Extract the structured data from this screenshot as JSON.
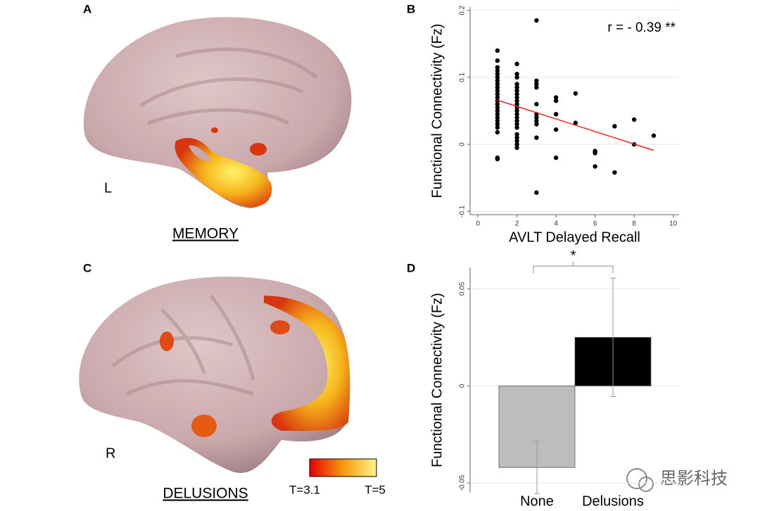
{
  "figure": {
    "panel_a": "A",
    "panel_b": "B",
    "panel_c": "C",
    "panel_d": "D",
    "hemisphere_a": "L",
    "caption_a": "MEMORY",
    "hemisphere_c": "R",
    "caption_c": "DELUSIONS",
    "colorbar_min": "T=3.1",
    "colorbar_max": "T=5",
    "watermark": "思影科技"
  },
  "chart_data": [
    {
      "type": "scatter",
      "x_label": "AVLT Delayed Recall",
      "y_label": "Functional Connectivity (Fz)",
      "annotation": "r = - 0.39 **",
      "color": "#000000",
      "x": [
        1,
        1,
        1,
        1,
        1,
        1,
        1,
        1,
        1,
        1,
        1,
        1,
        1,
        1,
        1,
        1,
        1,
        1,
        1,
        1,
        1,
        1,
        1,
        1,
        2,
        2,
        2,
        2,
        2,
        2,
        2,
        2,
        2,
        2,
        2,
        2,
        2,
        2,
        2,
        2,
        2,
        2,
        2,
        2,
        2,
        2,
        3,
        3,
        3,
        3,
        3,
        3,
        3,
        3,
        3,
        3,
        3,
        4,
        4,
        4,
        4,
        4,
        5,
        5,
        6,
        6,
        6,
        7,
        7,
        8,
        8,
        9
      ],
      "y": [
        0.14,
        0.125,
        0.115,
        0.11,
        0.105,
        0.1,
        0.095,
        0.09,
        0.085,
        0.08,
        0.075,
        0.07,
        0.065,
        0.06,
        0.055,
        0.05,
        0.045,
        0.04,
        0.035,
        0.03,
        0.025,
        0.018,
        -0.02,
        -0.022,
        0.12,
        0.105,
        0.1,
        0.09,
        0.085,
        0.08,
        0.075,
        0.07,
        0.065,
        0.06,
        0.055,
        0.05,
        0.045,
        0.04,
        0.035,
        0.03,
        0.025,
        0.015,
        0.01,
        0.005,
        0,
        -0.005,
        0.185,
        0.095,
        0.09,
        0.085,
        0.06,
        0.045,
        0.04,
        0.035,
        0.03,
        0.01,
        -0.072,
        0.07,
        0.065,
        0.045,
        0.022,
        -0.02,
        0.076,
        0.032,
        -0.01,
        -0.013,
        -0.033,
        0.027,
        -0.042,
        0.037,
        0,
        0.013
      ],
      "trendline": {
        "x": [
          1,
          9
        ],
        "y": [
          0.066,
          -0.009
        ],
        "color": "#e8231f"
      },
      "xlim": [
        -0.4,
        10.3
      ],
      "ylim": [
        -0.105,
        0.205
      ],
      "xticks": [
        0,
        2,
        4,
        6,
        8,
        10
      ],
      "yticks": [
        -0.1,
        0,
        0.1,
        0.2
      ],
      "grid": true
    },
    {
      "type": "bar",
      "y_label": "Functional Connectivity (Fz)",
      "categories": [
        "None",
        "Delusions"
      ],
      "values": [
        -0.042,
        0.025
      ],
      "errors": [
        0.0135,
        0.0305
      ],
      "colors": [
        "#bdbdbd",
        "#000000"
      ],
      "significance": "*",
      "ylim": [
        -0.055,
        0.061
      ],
      "yticks": [
        -0.05,
        0,
        0.05
      ],
      "grid": true
    }
  ]
}
